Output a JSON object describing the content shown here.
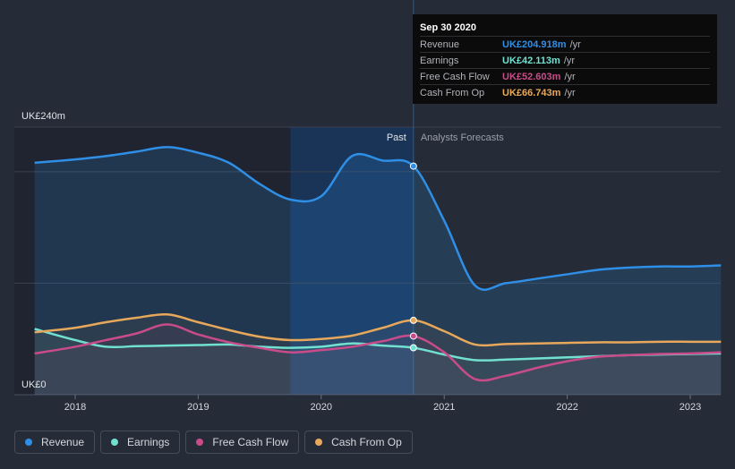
{
  "chart_data": {
    "type": "line",
    "title": "",
    "xlabel": "",
    "ylabel": "",
    "x_unit": "year",
    "xlim": [
      2017.42,
      2023.25
    ],
    "ylim": [
      0,
      240
    ],
    "x_ticks": [
      2018,
      2019,
      2020,
      2021,
      2022,
      2023
    ],
    "x_tick_labels": [
      "2018",
      "2019",
      "2020",
      "2021",
      "2022",
      "2023"
    ],
    "y_tick_labels": {
      "top": "UK£240m",
      "bottom": "UK£0"
    },
    "past_label": "Past",
    "forecast_label": "Analysts Forecasts",
    "divider_x": 2020.75,
    "highlight_start_x": 2019.75,
    "series": [
      {
        "name": "Revenue",
        "color": "#2f8fe6",
        "fill": true,
        "x": [
          2017.67,
          2018.0,
          2018.25,
          2018.5,
          2018.75,
          2019.0,
          2019.25,
          2019.5,
          2019.75,
          2020.0,
          2020.25,
          2020.5,
          2020.75,
          2021.0,
          2021.25,
          2021.5,
          2021.75,
          2022.0,
          2022.25,
          2022.5,
          2022.75,
          2023.0,
          2023.25
        ],
        "values": [
          208,
          211,
          214,
          218,
          222,
          217,
          208,
          189,
          175,
          178,
          214,
          210,
          205,
          156,
          98,
          100,
          104,
          108,
          112,
          114,
          115,
          115,
          116
        ]
      },
      {
        "name": "Earnings",
        "color": "#71e0d1",
        "fill": false,
        "x": [
          2017.67,
          2018.0,
          2018.25,
          2018.5,
          2018.75,
          2019.0,
          2019.25,
          2019.5,
          2019.75,
          2020.0,
          2020.25,
          2020.5,
          2020.75,
          2021.0,
          2021.25,
          2021.5,
          2021.75,
          2022.0,
          2022.25,
          2022.5,
          2022.75,
          2023.0,
          2023.25
        ],
        "values": [
          59,
          49,
          43,
          43.5,
          44,
          44.5,
          45,
          43,
          42,
          43,
          46,
          44,
          42.1,
          36,
          31,
          31.5,
          32.5,
          33.5,
          34.5,
          35.5,
          36,
          36.5,
          37
        ]
      },
      {
        "name": "Free Cash Flow",
        "color": "#c94b8a",
        "fill": false,
        "x": [
          2017.67,
          2018.0,
          2018.25,
          2018.5,
          2018.75,
          2019.0,
          2019.25,
          2019.5,
          2019.75,
          2020.0,
          2020.25,
          2020.5,
          2020.75,
          2021.0,
          2021.25,
          2021.5,
          2021.75,
          2022.0,
          2022.25,
          2022.5,
          2022.75,
          2023.0,
          2023.25
        ],
        "values": [
          37,
          43,
          49,
          55,
          63,
          54,
          47,
          42,
          38,
          40,
          43,
          48,
          52.6,
          38,
          14,
          17,
          24,
          30,
          34,
          35.5,
          36.5,
          37,
          38
        ]
      },
      {
        "name": "Cash From Op",
        "color": "#e8a85c",
        "fill": false,
        "x": [
          2017.67,
          2018.0,
          2018.25,
          2018.5,
          2018.75,
          2019.0,
          2019.25,
          2019.5,
          2019.75,
          2020.0,
          2020.25,
          2020.5,
          2020.75,
          2021.0,
          2021.25,
          2021.5,
          2021.75,
          2022.0,
          2022.25,
          2022.5,
          2022.75,
          2023.0,
          2023.25
        ],
        "values": [
          56,
          60,
          65,
          69,
          72,
          65,
          58,
          52,
          49,
          50,
          53,
          60,
          66.7,
          57,
          45,
          45.5,
          46,
          46.5,
          47,
          47,
          47.5,
          47.5,
          47.5
        ]
      }
    ]
  },
  "tooltip": {
    "date": "Sep 30 2020",
    "rows": [
      {
        "label": "Revenue",
        "value": "UK£204.918m",
        "unit": "/yr",
        "color": "#2f8fe6"
      },
      {
        "label": "Earnings",
        "value": "UK£42.113m",
        "unit": "/yr",
        "color": "#71e0d1"
      },
      {
        "label": "Free Cash Flow",
        "value": "UK£52.603m",
        "unit": "/yr",
        "color": "#c94b8a"
      },
      {
        "label": "Cash From Op",
        "value": "UK£66.743m",
        "unit": "/yr",
        "color": "#e8a85c"
      }
    ]
  },
  "legend": [
    {
      "label": "Revenue",
      "color": "#2f8fe6"
    },
    {
      "label": "Earnings",
      "color": "#71e0d1"
    },
    {
      "label": "Free Cash Flow",
      "color": "#c94b8a"
    },
    {
      "label": "Cash From Op",
      "color": "#e8a85c"
    }
  ]
}
